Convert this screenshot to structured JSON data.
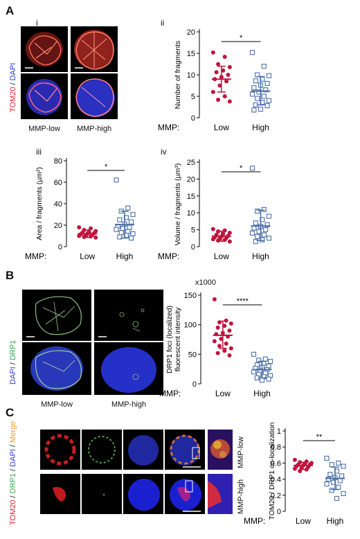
{
  "panels": {
    "A": {
      "letter": "A",
      "sub_i": "i",
      "sub_ii": "ii",
      "sub_iii": "iii",
      "sub_iv": "iv",
      "stain_label_red": "TOM20",
      "stain_sep": " / ",
      "stain_label_blue": "DAPI",
      "col_low": "MMP-low",
      "col_high": "MMP-high"
    },
    "B": {
      "letter": "B",
      "stain_label_blue": "DAPI",
      "stain_sep": " / ",
      "stain_label_green": "DRP1",
      "col_low": "MMP-low",
      "col_high": "MMP-high",
      "multiplier": "x1000"
    },
    "C": {
      "letter": "C",
      "stain_red": "TOM20",
      "stain_green": "DRP1",
      "stain_blue": "DAPI",
      "stain_merge": "Merge",
      "sep": " / ",
      "row_low": "MMP-low",
      "row_high": "MMP-high"
    }
  },
  "colors": {
    "low": "#c0143c",
    "high": "#4a6fa5",
    "red_stain": "#e0242c",
    "green_stain": "#3aa34a",
    "blue_stain": "#2b3bd0",
    "merge": "#e8a020"
  },
  "chart_data": [
    {
      "id": "A-ii",
      "type": "scatter",
      "ylabel": "Number of fragments",
      "xlabel_prefix": "MMP:",
      "categories": [
        "Low",
        "High"
      ],
      "ylim": [
        0,
        20
      ],
      "yticks": [
        0,
        5,
        10,
        15,
        20
      ],
      "significance": "*",
      "series": [
        {
          "name": "Low",
          "values": [
            15.2,
            14.2,
            12.5,
            11.8,
            11.0,
            10.6,
            10.0,
            9.5,
            9.0,
            8.5,
            7.5,
            6.0,
            5.0,
            4.2,
            3.8
          ],
          "mean": 9.0,
          "sd_low": 6.0,
          "sd_high": 12.0
        },
        {
          "name": "High",
          "values": [
            15.2,
            12.0,
            10.0,
            9.8,
            9.0,
            8.6,
            8.0,
            7.6,
            7.0,
            6.5,
            6.0,
            5.5,
            5.0,
            4.5,
            4.0,
            3.6,
            3.0,
            2.8,
            2.0,
            1.8
          ],
          "mean": 6.2,
          "sd_low": 3.0,
          "sd_high": 9.6
        }
      ]
    },
    {
      "id": "A-iii",
      "type": "scatter",
      "ylabel": "Area / fragments (µm²)",
      "xlabel_prefix": "MMP:",
      "categories": [
        "Low",
        "High"
      ],
      "ylim": [
        0,
        80
      ],
      "yticks": [
        0,
        20,
        40,
        60,
        80
      ],
      "significance": "*",
      "series": [
        {
          "name": "Low",
          "values": [
            18.0,
            17.0,
            15.5,
            14.5,
            13.5,
            13.0,
            12.5,
            12.0,
            11.5,
            11.0,
            10.5,
            10.0,
            9.5,
            9.0,
            8.5
          ],
          "mean": 12.0,
          "sd_low": 8.5,
          "sd_high": 15.5
        },
        {
          "name": "High",
          "values": [
            62.0,
            36.0,
            33.0,
            30.0,
            27.0,
            25.0,
            23.0,
            21.0,
            19.0,
            18.0,
            17.0,
            16.0,
            14.0,
            13.0,
            12.0,
            10.5,
            9.0,
            8.0
          ],
          "mean": 20.5,
          "sd_low": 8.0,
          "sd_high": 33.0
        }
      ]
    },
    {
      "id": "A-iv",
      "type": "scatter",
      "ylabel": "Volume / fragments (µm³)",
      "xlabel_prefix": "MMP:",
      "categories": [
        "Low",
        "High"
      ],
      "ylim": [
        0,
        25
      ],
      "yticks": [
        0,
        5,
        10,
        15,
        20,
        25
      ],
      "significance": "*",
      "series": [
        {
          "name": "Low",
          "values": [
            5.2,
            4.8,
            4.5,
            4.1,
            3.8,
            3.5,
            3.2,
            3.0,
            2.8,
            2.6,
            2.4,
            2.2,
            2.0,
            1.8,
            1.5
          ],
          "mean": 3.1,
          "sd_low": 1.6,
          "sd_high": 4.6
        },
        {
          "name": "High",
          "values": [
            23.2,
            11.0,
            10.5,
            9.0,
            8.0,
            7.0,
            6.5,
            6.0,
            5.5,
            5.0,
            4.5,
            4.0,
            3.5,
            3.0,
            2.5,
            2.0,
            1.5
          ],
          "mean": 6.1,
          "sd_low": 1.8,
          "sd_high": 10.8
        }
      ]
    },
    {
      "id": "B",
      "type": "scatter",
      "ylabel": "DRP1 foci (localized) fluorescent intensity",
      "xlabel_prefix": "MMP:",
      "categories": [
        "Low",
        "High"
      ],
      "ylim": [
        0,
        150
      ],
      "yticks": [
        0,
        50,
        100,
        150
      ],
      "significance": "****",
      "series": [
        {
          "name": "Low",
          "values": [
            143,
            107,
            104,
            102,
            98,
            95,
            90,
            86,
            84,
            80,
            76,
            72,
            68,
            64,
            60,
            56,
            52,
            48
          ],
          "mean": 82,
          "sd_low": 60,
          "sd_high": 106
        },
        {
          "name": "High",
          "values": [
            50,
            42,
            40,
            38,
            35,
            32,
            30,
            28,
            26,
            24,
            22,
            20,
            18,
            16,
            14,
            12,
            10,
            8,
            6
          ],
          "mean": 24,
          "sd_low": 10,
          "sd_high": 38
        }
      ]
    },
    {
      "id": "C",
      "type": "scatter",
      "ylabel": "TOM20 / DRP1 co-localization",
      "xlabel_prefix": "MMP:",
      "categories": [
        "Low",
        "High"
      ],
      "ylim": [
        0,
        1
      ],
      "yticks": [
        0,
        0.2,
        0.4,
        0.6,
        0.8,
        1
      ],
      "significance": "**",
      "series": [
        {
          "name": "Low",
          "values": [
            0.64,
            0.62,
            0.61,
            0.6,
            0.59,
            0.58,
            0.58,
            0.57,
            0.56,
            0.55,
            0.54,
            0.53,
            0.52,
            0.5
          ],
          "mean": 0.57,
          "sd_low": 0.52,
          "sd_high": 0.61
        },
        {
          "name": "High",
          "values": [
            0.66,
            0.6,
            0.58,
            0.56,
            0.5,
            0.46,
            0.44,
            0.42,
            0.4,
            0.38,
            0.36,
            0.34,
            0.3,
            0.26,
            0.22,
            0.16
          ],
          "mean": 0.41,
          "sd_low": 0.27,
          "sd_high": 0.55
        }
      ]
    }
  ]
}
